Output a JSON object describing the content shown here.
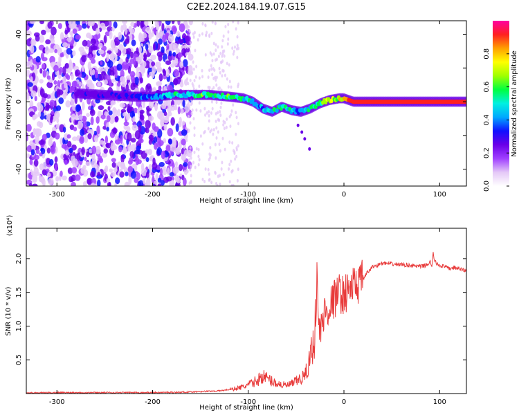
{
  "title": "C2E2.2024.184.19.07.G15",
  "chart_data": [
    {
      "type": "heatmap",
      "name": "spectrogram",
      "xlabel": "Height of straight line (km)",
      "ylabel": "Frequency (Hz)",
      "xlim": [
        -332,
        128
      ],
      "ylim": [
        -50,
        48
      ],
      "x_ticks": [
        -300,
        -200,
        -100,
        0,
        100
      ],
      "x_tick_labels": [
        "-300",
        "-200",
        "-100",
        "0",
        "100"
      ],
      "y_ticks": [
        -40,
        -20,
        0,
        20,
        40
      ],
      "y_tick_labels": [
        "-40",
        "-20",
        "0",
        "20",
        "40"
      ],
      "colorbar": {
        "label": "Normalized spectral amplitude",
        "range": [
          0,
          1
        ],
        "ticks": [
          0.0,
          0.2,
          0.4,
          0.6,
          0.8
        ],
        "tick_labels": [
          "0.0",
          "0.2",
          "0.4",
          "0.6",
          "0.8"
        ],
        "colors": [
          "#ffffff",
          "#e4c8f7",
          "#a040ff",
          "#6a00e8",
          "#1010ff",
          "#00a8ff",
          "#00f0e0",
          "#00ff40",
          "#a0ff00",
          "#ffff00",
          "#ffa000",
          "#ff2020",
          "#ff00a0"
        ]
      },
      "noise_region": {
        "x_from": -332,
        "x_to": -160
      },
      "ridge": {
        "x": [
          -280,
          -250,
          -220,
          -200,
          -180,
          -160,
          -140,
          -120,
          -105,
          -95,
          -85,
          -75,
          -65,
          -55,
          -45,
          -35,
          -25,
          -15,
          -5,
          0,
          10,
          20,
          40,
          60,
          80,
          100,
          128
        ],
        "y": [
          5,
          4,
          3,
          3,
          4,
          4,
          4,
          3,
          2,
          0,
          -4,
          -6,
          -3,
          -5,
          -6,
          -4,
          -1,
          1,
          2,
          2,
          0,
          0,
          0,
          0,
          0,
          0,
          0
        ],
        "amplitude": [
          0.25,
          0.3,
          0.3,
          0.4,
          0.5,
          0.55,
          0.6,
          0.6,
          0.55,
          0.5,
          0.45,
          0.5,
          0.55,
          0.5,
          0.45,
          0.55,
          0.65,
          0.75,
          0.8,
          0.85,
          0.9,
          0.95,
          0.95,
          0.95,
          0.9,
          0.95,
          0.95
        ]
      }
    },
    {
      "type": "line",
      "name": "snr",
      "xlabel": "Height of straight line (km)",
      "ylabel": "SNR (10 * v/v)",
      "y_scale_label": "(x10⁴)",
      "color": "#e83a3a",
      "xlim": [
        -332,
        128
      ],
      "ylim": [
        0,
        2.45
      ],
      "x_ticks": [
        -300,
        -200,
        -100,
        0,
        100
      ],
      "x_tick_labels": [
        "-300",
        "-200",
        "-100",
        "0",
        "100"
      ],
      "y_ticks": [
        0.5,
        1.0,
        1.5,
        2.0
      ],
      "y_tick_labels": [
        "0.5",
        "1.0",
        "1.5",
        "2.0"
      ],
      "x": [
        -332,
        -300,
        -250,
        -200,
        -170,
        -150,
        -130,
        -115,
        -105,
        -100,
        -95,
        -90,
        -85,
        -80,
        -75,
        -70,
        -65,
        -60,
        -55,
        -50,
        -45,
        -40,
        -35,
        -32,
        -30,
        -28,
        -27,
        -25,
        -22,
        -20,
        -15,
        -10,
        -5,
        0,
        5,
        10,
        15,
        20,
        25,
        30,
        40,
        50,
        60,
        70,
        80,
        85,
        88,
        90,
        92,
        93,
        95,
        100,
        105,
        110,
        115,
        120,
        128
      ],
      "y": [
        0.01,
        0.015,
        0.015,
        0.015,
        0.02,
        0.03,
        0.04,
        0.07,
        0.1,
        0.13,
        0.16,
        0.2,
        0.26,
        0.22,
        0.18,
        0.15,
        0.13,
        0.12,
        0.14,
        0.18,
        0.22,
        0.28,
        0.55,
        0.8,
        1.0,
        1.8,
        1.1,
        0.9,
        1.1,
        1.2,
        1.3,
        1.4,
        1.5,
        1.45,
        1.55,
        1.6,
        1.62,
        1.7,
        1.8,
        1.88,
        1.93,
        1.92,
        1.91,
        1.9,
        1.88,
        1.9,
        1.92,
        1.96,
        1.85,
        2.1,
        1.95,
        1.9,
        1.88,
        1.85,
        1.87,
        1.85,
        1.82
      ]
    }
  ]
}
